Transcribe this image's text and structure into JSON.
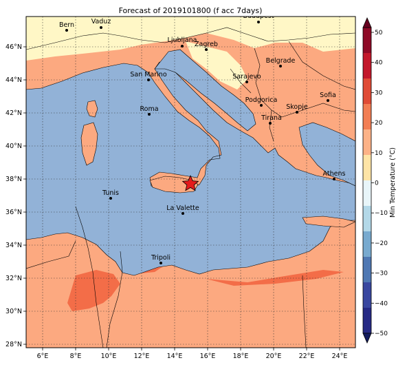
{
  "title": "Forecast of 2019101800 (f acc 7days)",
  "map": {
    "x_ticks": [
      "6°E",
      "8°E",
      "10°E",
      "12°E",
      "14°E",
      "16°E",
      "18°E",
      "20°E",
      "22°E",
      "24°E"
    ],
    "y_ticks": [
      "46°N",
      "44°N",
      "42°N",
      "40°N",
      "38°N",
      "36°N",
      "34°N",
      "32°N",
      "30°N",
      "28°N"
    ],
    "cities": [
      {
        "name": "Bern"
      },
      {
        "name": "Vaduz"
      },
      {
        "name": "Budapest"
      },
      {
        "name": "Ljubljana"
      },
      {
        "name": "Zagreb"
      },
      {
        "name": "Belgrade"
      },
      {
        "name": "San Marino"
      },
      {
        "name": "Sarajevo"
      },
      {
        "name": "Sofia"
      },
      {
        "name": "Podgorica"
      },
      {
        "name": "Skopje"
      },
      {
        "name": "Roma"
      },
      {
        "name": "Tirana"
      },
      {
        "name": "Athens"
      },
      {
        "name": "Tunis"
      },
      {
        "name": "La Valette"
      },
      {
        "name": "Tripoli"
      }
    ],
    "colors": {
      "sea": "#92b2d7",
      "land_warm": "#fca980",
      "land_mild": "#fff7c6",
      "land_hot": "#f36d48",
      "land_cool": "#e5f2f8"
    }
  },
  "colorbar": {
    "label": "Min Temperature (°C)",
    "ticks": [
      "50",
      "40",
      "30",
      "20",
      "10",
      "0",
      "−10",
      "−20",
      "−30",
      "−40",
      "−50"
    ],
    "colors_top_to_bottom": [
      "#8e0a26",
      "#c3182b",
      "#e04b36",
      "#f27e54",
      "#fcb287",
      "#fee4a6",
      "#e8f5f9",
      "#b3d8e8",
      "#78aacf",
      "#4f78b3",
      "#3947a0",
      "#262a85"
    ]
  }
}
